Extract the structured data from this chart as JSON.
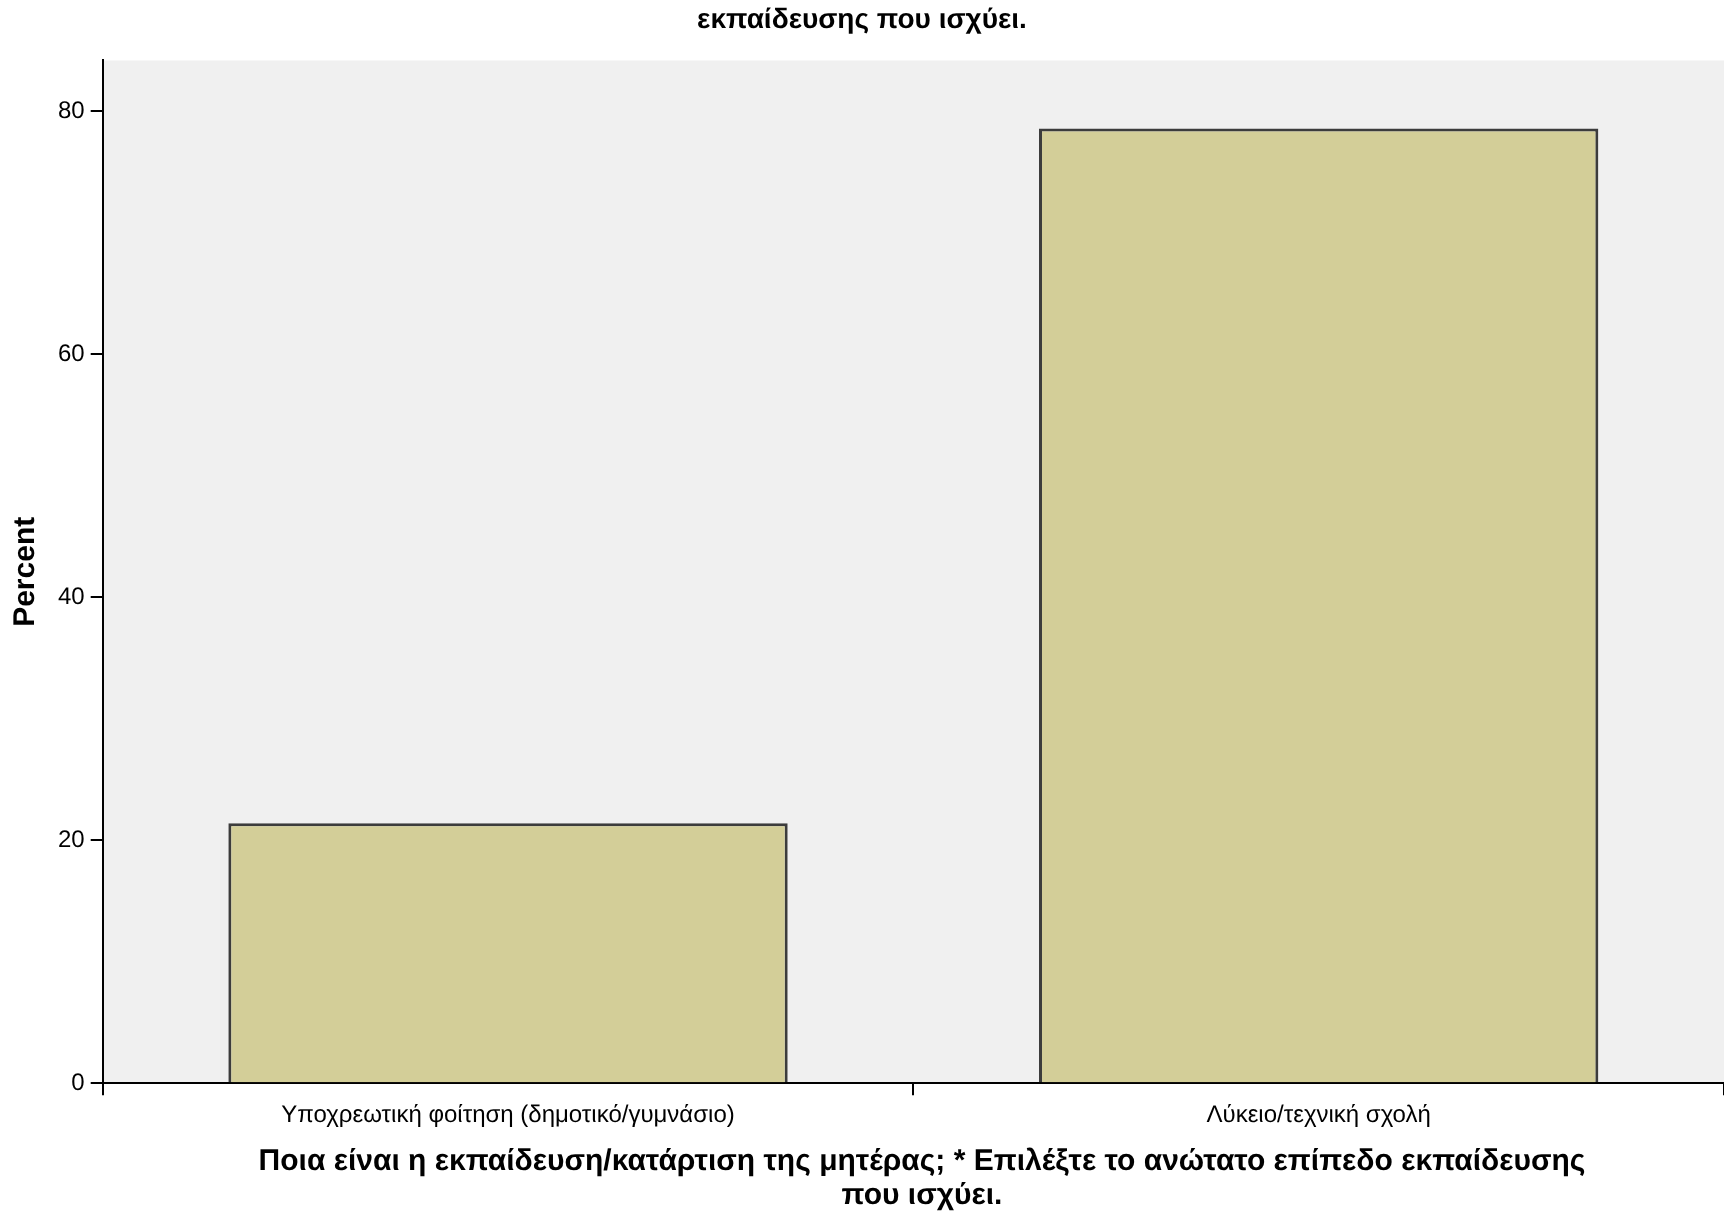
{
  "chart_data": {
    "type": "bar",
    "title": "εκπαίδευσης που ισχύει.",
    "xlabel": "Ποια είναι η εκπαίδευση/κατάρτιση της μητέρας; * Επιλέξτε το ανώτατο επίπεδο εκπαίδευσης που ισχύει.",
    "ylabel": "Percent",
    "categories": [
      "Υποχρεωτική φοίτηση (δημοτικό/γυμνάσιο)",
      "Λύκειο/τεχνική σχολή"
    ],
    "values": [
      21.4,
      78.6
    ],
    "color": "#d3ce98",
    "ylim": [
      0,
      84.2
    ],
    "yticks": [
      0,
      20,
      40,
      60,
      80
    ],
    "grid": false,
    "legend": false
  }
}
